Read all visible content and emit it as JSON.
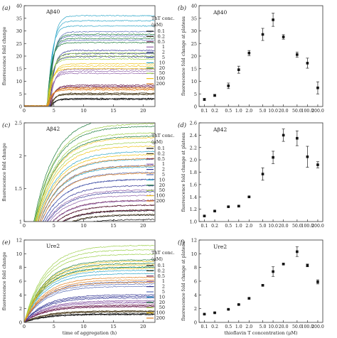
{
  "chart_data": [
    {
      "panel": "(a)",
      "type": "line",
      "title": "Aβ40",
      "xlabel": "",
      "ylabel": "fluorescence fold change",
      "xlim": [
        0,
        22
      ],
      "ylim": [
        0,
        40
      ],
      "xticks": [
        0,
        5,
        10,
        15,
        20
      ],
      "yticks": [
        0,
        5,
        10,
        15,
        20,
        25,
        30,
        35,
        40
      ],
      "legend_title": [
        "ThT conc.",
        "(μM)"
      ],
      "legend_placement": "right",
      "series": [
        {
          "name": "0.1",
          "color": "#111111",
          "lag": 4.5,
          "plateau": 3
        },
        {
          "name": "0.2",
          "color": "#4a3a1a",
          "lag": 4.4,
          "plateau": 5
        },
        {
          "name": "0.5",
          "color": "#6a1b4d",
          "lag": 4.3,
          "plateau": 8
        },
        {
          "name": "1",
          "color": "#8e5fa8",
          "lag": 4.2,
          "plateau": 14
        },
        {
          "name": "2",
          "color": "#2e3192",
          "lag": 4.2,
          "plateau": 21
        },
        {
          "name": "5",
          "color": "#5b6fb8",
          "lag": 4.1,
          "plateau": 28
        },
        {
          "name": "10",
          "color": "#2ea6c8",
          "lag": 4.1,
          "plateau": 34
        },
        {
          "name": "20",
          "color": "#1a7a3a",
          "lag": 4.0,
          "plateau": 27
        },
        {
          "name": "50",
          "color": "#9ccf4a",
          "lag": 4.0,
          "plateau": 20
        },
        {
          "name": "100",
          "color": "#f0c419",
          "lag": 4.0,
          "plateau": 16
        },
        {
          "name": "200",
          "color": "#e08020",
          "lag": 4.0,
          "plateau": 7
        }
      ]
    },
    {
      "panel": "(b)",
      "type": "scatter",
      "title": "Aβ40",
      "xlabel": "",
      "ylabel": "fluorescence fold change at plateau",
      "xscale": "log",
      "xlim": [
        0.07,
        280
      ],
      "ylim": [
        0,
        40
      ],
      "xtick_labels": [
        "0.1",
        "0.2",
        "0.5",
        "1.0",
        "2.0",
        "5.0",
        "10.0",
        "20.0",
        "50.0",
        "100.0",
        "200.0"
      ],
      "yticks": [
        0,
        5,
        10,
        15,
        20,
        25,
        30,
        35,
        40
      ],
      "x": [
        0.1,
        0.2,
        0.5,
        1,
        2,
        5,
        10,
        20,
        50,
        100,
        200
      ],
      "y": [
        2.8,
        4.4,
        8.2,
        14.6,
        21.2,
        28.6,
        34.4,
        27.6,
        20.6,
        17.2,
        7.4
      ],
      "yerr": [
        0.4,
        0.4,
        1.1,
        1.4,
        1.0,
        2.4,
        2.6,
        0.9,
        1.0,
        2.0,
        2.4
      ]
    },
    {
      "panel": "(c)",
      "type": "line",
      "title": "Aβ42",
      "xlabel": "",
      "ylabel": "fluorescence fold change",
      "xlim": [
        0,
        22
      ],
      "ylim": [
        1.0,
        2.5
      ],
      "xticks": [
        0,
        5,
        10,
        15,
        20
      ],
      "yticks": [
        1.0,
        1.5,
        2.0,
        2.5
      ],
      "legend_title": [
        "ThT conc.",
        "(μM)"
      ],
      "legend_placement": "right",
      "series": [
        {
          "name": "0.1",
          "color": "#111111",
          "plateau": 1.1
        },
        {
          "name": "0.2",
          "color": "#4a3a1a",
          "plateau": 1.18
        },
        {
          "name": "0.5",
          "color": "#6a1b4d",
          "plateau": 1.25
        },
        {
          "name": "1",
          "color": "#8e5fa8",
          "plateau": 1.4
        },
        {
          "name": "2",
          "color": "#2e3192",
          "plateau": 1.55
        },
        {
          "name": "5",
          "color": "#5b6fb8",
          "plateau": 1.75
        },
        {
          "name": "10",
          "color": "#2ea6c8",
          "plateau": 1.95
        },
        {
          "name": "20",
          "color": "#1a7a3a",
          "plateau": 2.45
        },
        {
          "name": "50",
          "color": "#9ccf4a",
          "plateau": 2.35
        },
        {
          "name": "100",
          "color": "#f0c419",
          "plateau": 2.15
        },
        {
          "name": "200",
          "color": "#e08020",
          "plateau": 1.85
        }
      ]
    },
    {
      "panel": "(d)",
      "type": "scatter",
      "title": "Aβ42",
      "xlabel": "",
      "ylabel": "fluorescence fold change at plateau",
      "xscale": "log",
      "xlim": [
        0.07,
        280
      ],
      "ylim": [
        1.0,
        2.6
      ],
      "xtick_labels": [
        "0.1",
        "0.2",
        "0.5",
        "1.0",
        "2.0",
        "5.0",
        "10.0",
        "20.0",
        "50.0",
        "100.0",
        "200.0"
      ],
      "yticks": [
        1.0,
        1.2,
        1.4,
        1.6,
        1.8,
        2.0,
        2.2,
        2.4,
        2.6
      ],
      "x": [
        0.1,
        0.2,
        0.5,
        1,
        2,
        5,
        10,
        20,
        50,
        100,
        200
      ],
      "y": [
        1.09,
        1.17,
        1.24,
        1.25,
        1.4,
        1.77,
        2.04,
        2.4,
        2.35,
        2.05,
        1.92
      ],
      "yerr": [
        0.01,
        0.01,
        0.01,
        0.01,
        0.01,
        0.1,
        0.1,
        0.1,
        0.12,
        0.17,
        0.05
      ]
    },
    {
      "panel": "(e)",
      "type": "line",
      "title": "Ure2",
      "xlabel": "time of aggregation (h)",
      "ylabel": "fluorescence fold change",
      "xlim": [
        0,
        22
      ],
      "ylim": [
        0,
        12
      ],
      "xticks": [
        0,
        5,
        10,
        15,
        20
      ],
      "yticks": [
        0,
        2,
        4,
        6,
        8,
        10,
        12
      ],
      "legend_title": [
        "ThT conc.",
        "(μM)"
      ],
      "legend_placement": "right",
      "series": [
        {
          "name": "0.1",
          "color": "#111111",
          "plateau": 1.2
        },
        {
          "name": "0.2",
          "color": "#4a3a1a",
          "plateau": 1.6
        },
        {
          "name": "0.5",
          "color": "#6a1b4d",
          "plateau": 2.4
        },
        {
          "name": "1",
          "color": "#8e5fa8",
          "plateau": 3.0
        },
        {
          "name": "2",
          "color": "#2e3192",
          "plateau": 3.8
        },
        {
          "name": "5",
          "color": "#5b6fb8",
          "plateau": 5.6
        },
        {
          "name": "10",
          "color": "#2ea6c8",
          "plateau": 7.6
        },
        {
          "name": "20",
          "color": "#1a7a3a",
          "plateau": 8.6
        },
        {
          "name": "50",
          "color": "#9ccf4a",
          "plateau": 10.6
        },
        {
          "name": "100",
          "color": "#f0c419",
          "plateau": 8.4
        },
        {
          "name": "200",
          "color": "#e08020",
          "plateau": 6.2
        }
      ]
    },
    {
      "panel": "(f)",
      "type": "scatter",
      "title": "Ure2",
      "xlabel": "thioflavin T concentration (μM)",
      "ylabel": "fluorescence fold change at plateau",
      "xscale": "log",
      "xlim": [
        0.07,
        280
      ],
      "ylim": [
        0,
        12
      ],
      "xtick_labels": [
        "0.1",
        "0.2",
        "0.5",
        "1.0",
        "2.0",
        "5.0",
        "10.0",
        "20.0",
        "50.0",
        "100.0",
        "200.0"
      ],
      "yticks": [
        0,
        2,
        4,
        6,
        8,
        10,
        12
      ],
      "x": [
        0.1,
        0.2,
        0.5,
        1,
        2,
        5,
        10,
        20,
        50,
        100,
        200
      ],
      "y": [
        1.2,
        1.4,
        1.9,
        2.6,
        3.5,
        5.4,
        7.4,
        8.5,
        10.3,
        8.3,
        5.9
      ],
      "yerr": [
        0.05,
        0.05,
        0.05,
        0.05,
        0.1,
        0.1,
        0.7,
        0.1,
        0.7,
        0.2,
        0.3
      ]
    }
  ]
}
